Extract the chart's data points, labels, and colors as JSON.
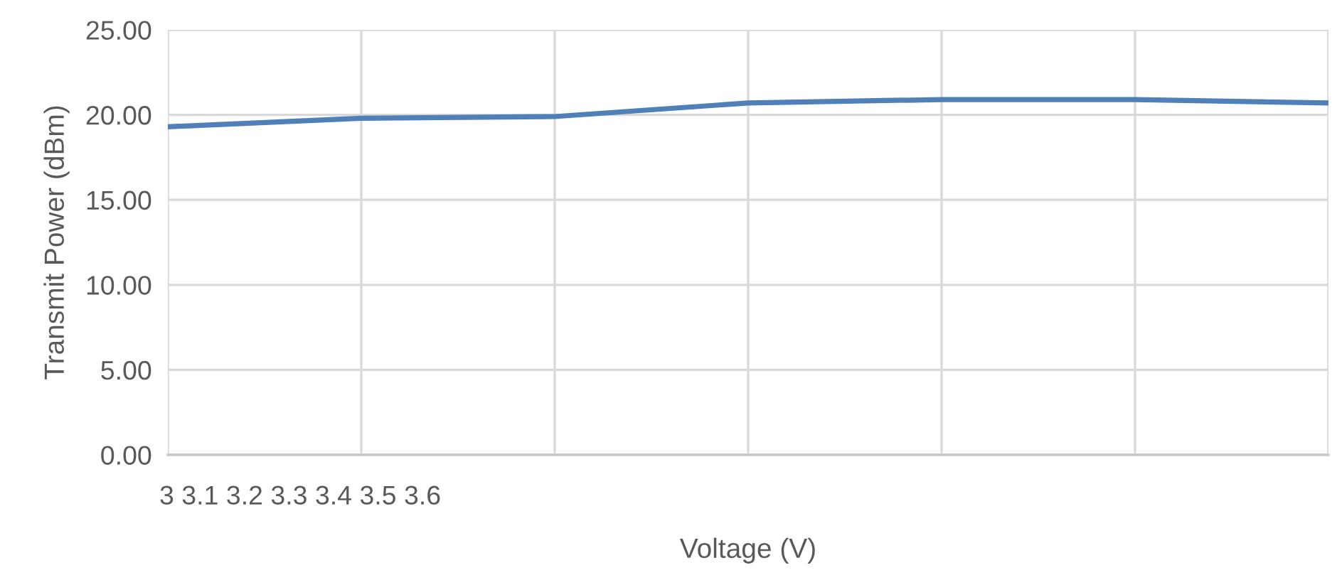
{
  "chart_data": {
    "type": "line",
    "xlabel": "Voltage (V)",
    "ylabel": "Transmit Power (dBm)",
    "categories": [
      null,
      null,
      null,
      null,
      null,
      null,
      null
    ],
    "series": [
      {
        "color": "#5080b8",
        "values": [
          19.3,
          19.8,
          19.9,
          20.7,
          20.9,
          20.9,
          20.7
        ]
      }
    ],
    "ylim": [
      0,
      25
    ],
    "yticks": [
      {
        "value": 0,
        "label": "0.00"
      },
      {
        "value": 5,
        "label": "5.00"
      },
      {
        "value": 10,
        "label": "10.00"
      },
      {
        "value": 15,
        "label": "15.00"
      },
      {
        "value": 20,
        "label": "20.00"
      },
      {
        "value": 25,
        "label": "25.00"
      }
    ],
    "grid": true,
    "marker": "none",
    "line_style": "solid",
    "annotations": [
      "3 3.1 3.2 3.3 3.4 3.5 3.6"
    ]
  }
}
